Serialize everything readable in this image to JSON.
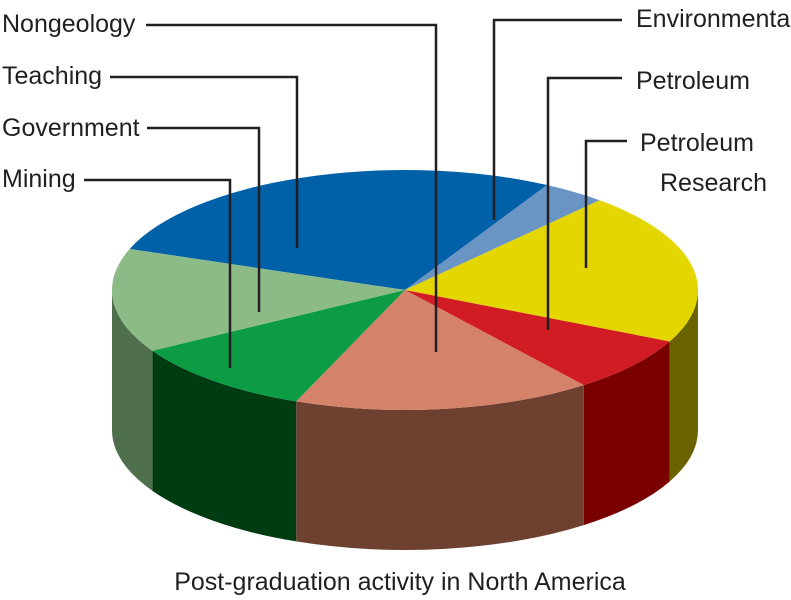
{
  "chart_data": {
    "type": "pie",
    "style": "3d",
    "title": "Post-graduation activity in North America",
    "unit": "percent",
    "slices": [
      {
        "label": "Environmental",
        "value": 27.5,
        "color": "#0060a8",
        "side": "#003a66"
      },
      {
        "label": "Petroleum Research",
        "value": 3.5,
        "color": "#6a94c4",
        "side": "#3f5b7e"
      },
      {
        "label": "Petroleum",
        "value": 20.5,
        "color": "#e4d600",
        "side": "#6b6200"
      },
      {
        "label": "Nongeology",
        "value": 7.5,
        "color": "#d01c22",
        "side": "#7a0000"
      },
      {
        "label": "Mining",
        "value": 16.5,
        "color": "#d4826a",
        "side": "#6e4030"
      },
      {
        "label": "Government",
        "value": 10.5,
        "color": "#0c9c44",
        "side": "#003c12"
      },
      {
        "label": "Teaching",
        "value": 14.0,
        "color": "#8cbb88",
        "side": "#4f6e4c"
      }
    ]
  },
  "labels": {
    "nongeology": "Nongeology",
    "teaching": "Teaching",
    "government": "Government",
    "mining": "Mining",
    "environmental": "Environmental",
    "petroleum": "Petroleum",
    "petroleum_research_line1": "Petroleum",
    "petroleum_research_line2": "Research"
  }
}
